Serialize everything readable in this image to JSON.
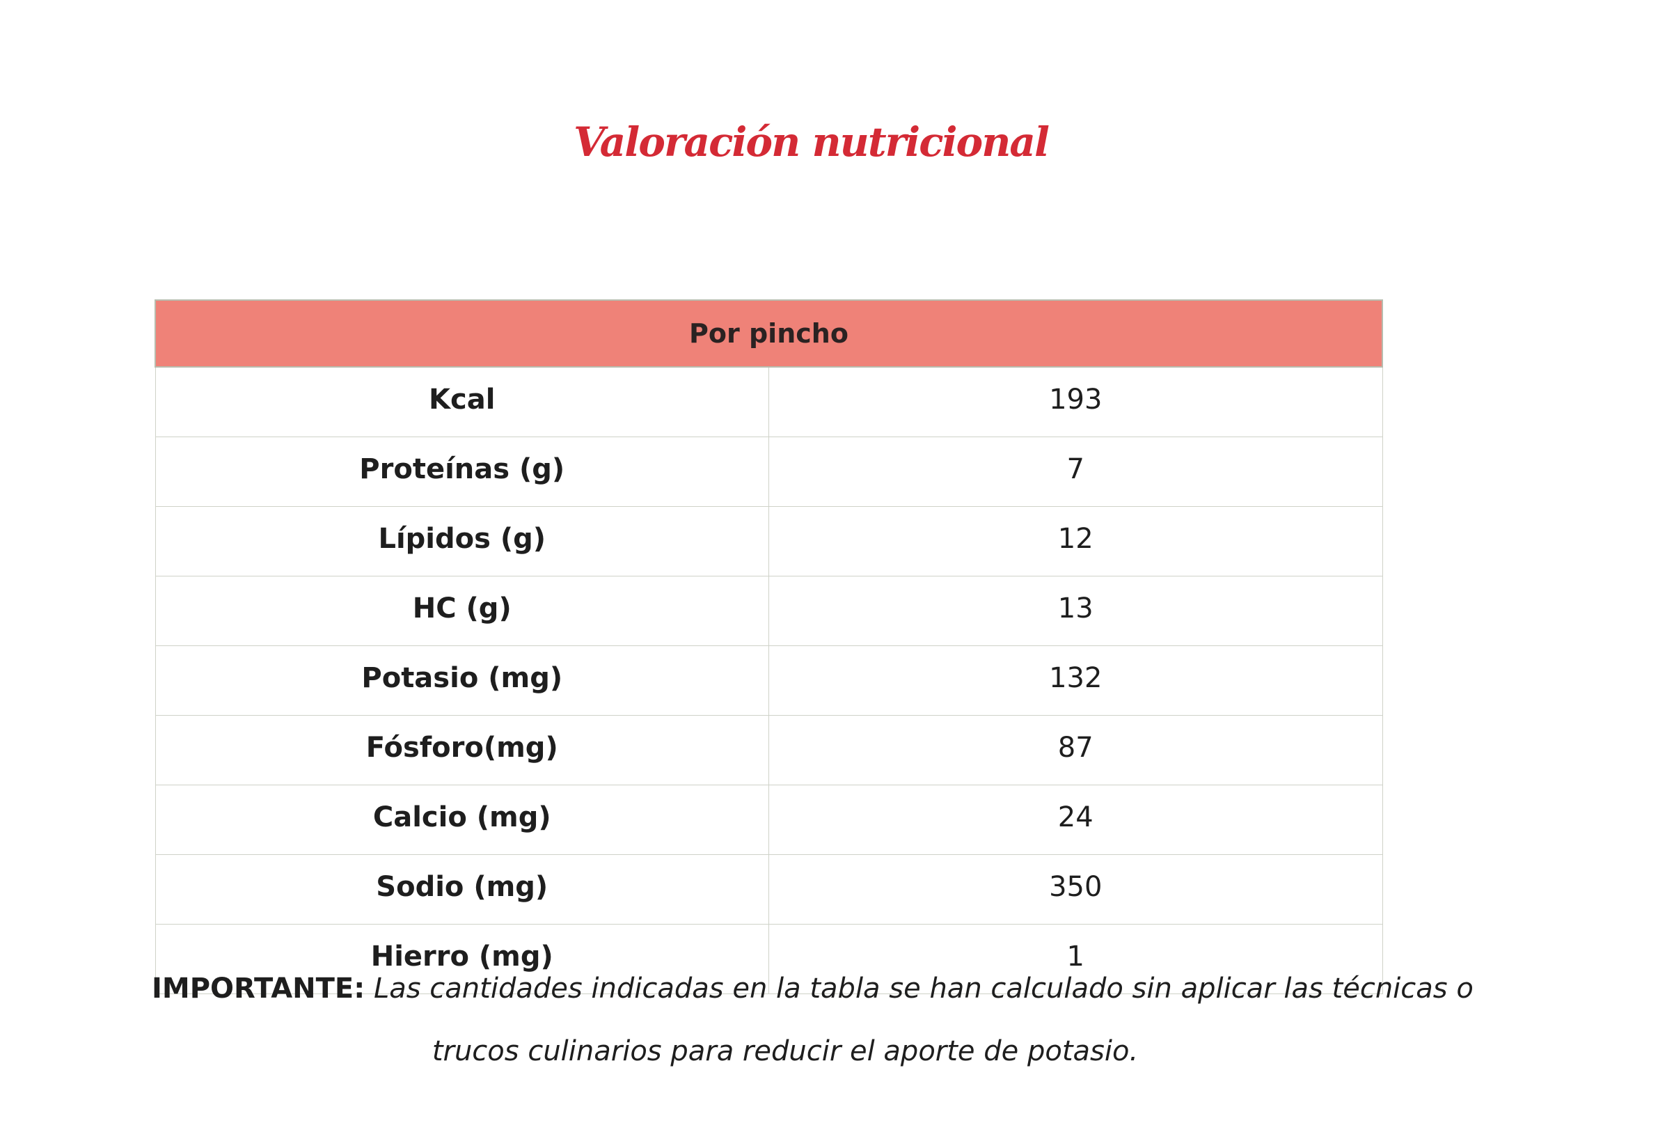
{
  "title": "Valoración nutricional",
  "table": {
    "header": "Por pincho",
    "rows": [
      {
        "label": "Kcal",
        "value": "193"
      },
      {
        "label": "Proteínas (g)",
        "value": "7"
      },
      {
        "label": "Lípidos (g)",
        "value": "12"
      },
      {
        "label": "HC (g)",
        "value": "13"
      },
      {
        "label": "Potasio (mg)",
        "value": "132"
      },
      {
        "label": "Fósforo(mg)",
        "value": "87"
      },
      {
        "label": "Calcio (mg)",
        "value": "24"
      },
      {
        "label": "Sodio (mg)",
        "value": "350"
      },
      {
        "label": "Hierro (mg)",
        "value": "1"
      }
    ]
  },
  "note": {
    "label": "IMPORTANTE:",
    "line1": "Las cantidades indicadas en la tabla se han calculado sin aplicar las técnicas o",
    "line2": "trucos culinarios para reducir el aporte de potasio."
  },
  "colors": {
    "title": "#d42a35",
    "header_bg": "#ef8278"
  }
}
